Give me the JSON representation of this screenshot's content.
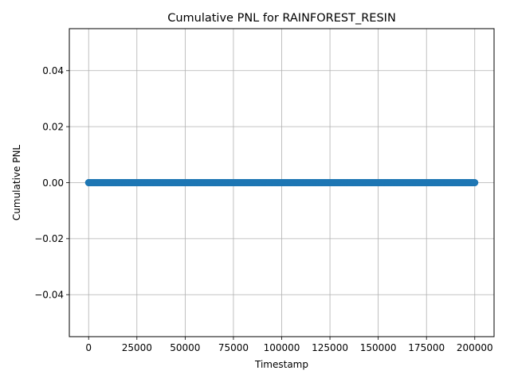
{
  "chart_data": {
    "type": "scatter",
    "title": "Cumulative PNL for RAINFOREST_RESIN",
    "xlabel": "Timestamp",
    "ylabel": "Cumulative PNL",
    "xlim": [
      -10000,
      210000
    ],
    "ylim": [
      -0.055,
      0.055
    ],
    "xticks": [
      0,
      25000,
      50000,
      75000,
      100000,
      125000,
      150000,
      175000,
      200000
    ],
    "xtick_labels": [
      "0",
      "25000",
      "50000",
      "75000",
      "100000",
      "125000",
      "150000",
      "175000",
      "200000"
    ],
    "yticks": [
      -0.04,
      -0.02,
      0.0,
      0.02,
      0.04
    ],
    "ytick_labels": [
      "−0.04",
      "−0.02",
      "0.00",
      "0.02",
      "0.04"
    ],
    "grid": true,
    "series": [
      {
        "x_start": 0,
        "x_end": 200000,
        "x_step": 100,
        "y": 0.0,
        "color": "#1f77b4",
        "marker": "circle"
      }
    ]
  }
}
